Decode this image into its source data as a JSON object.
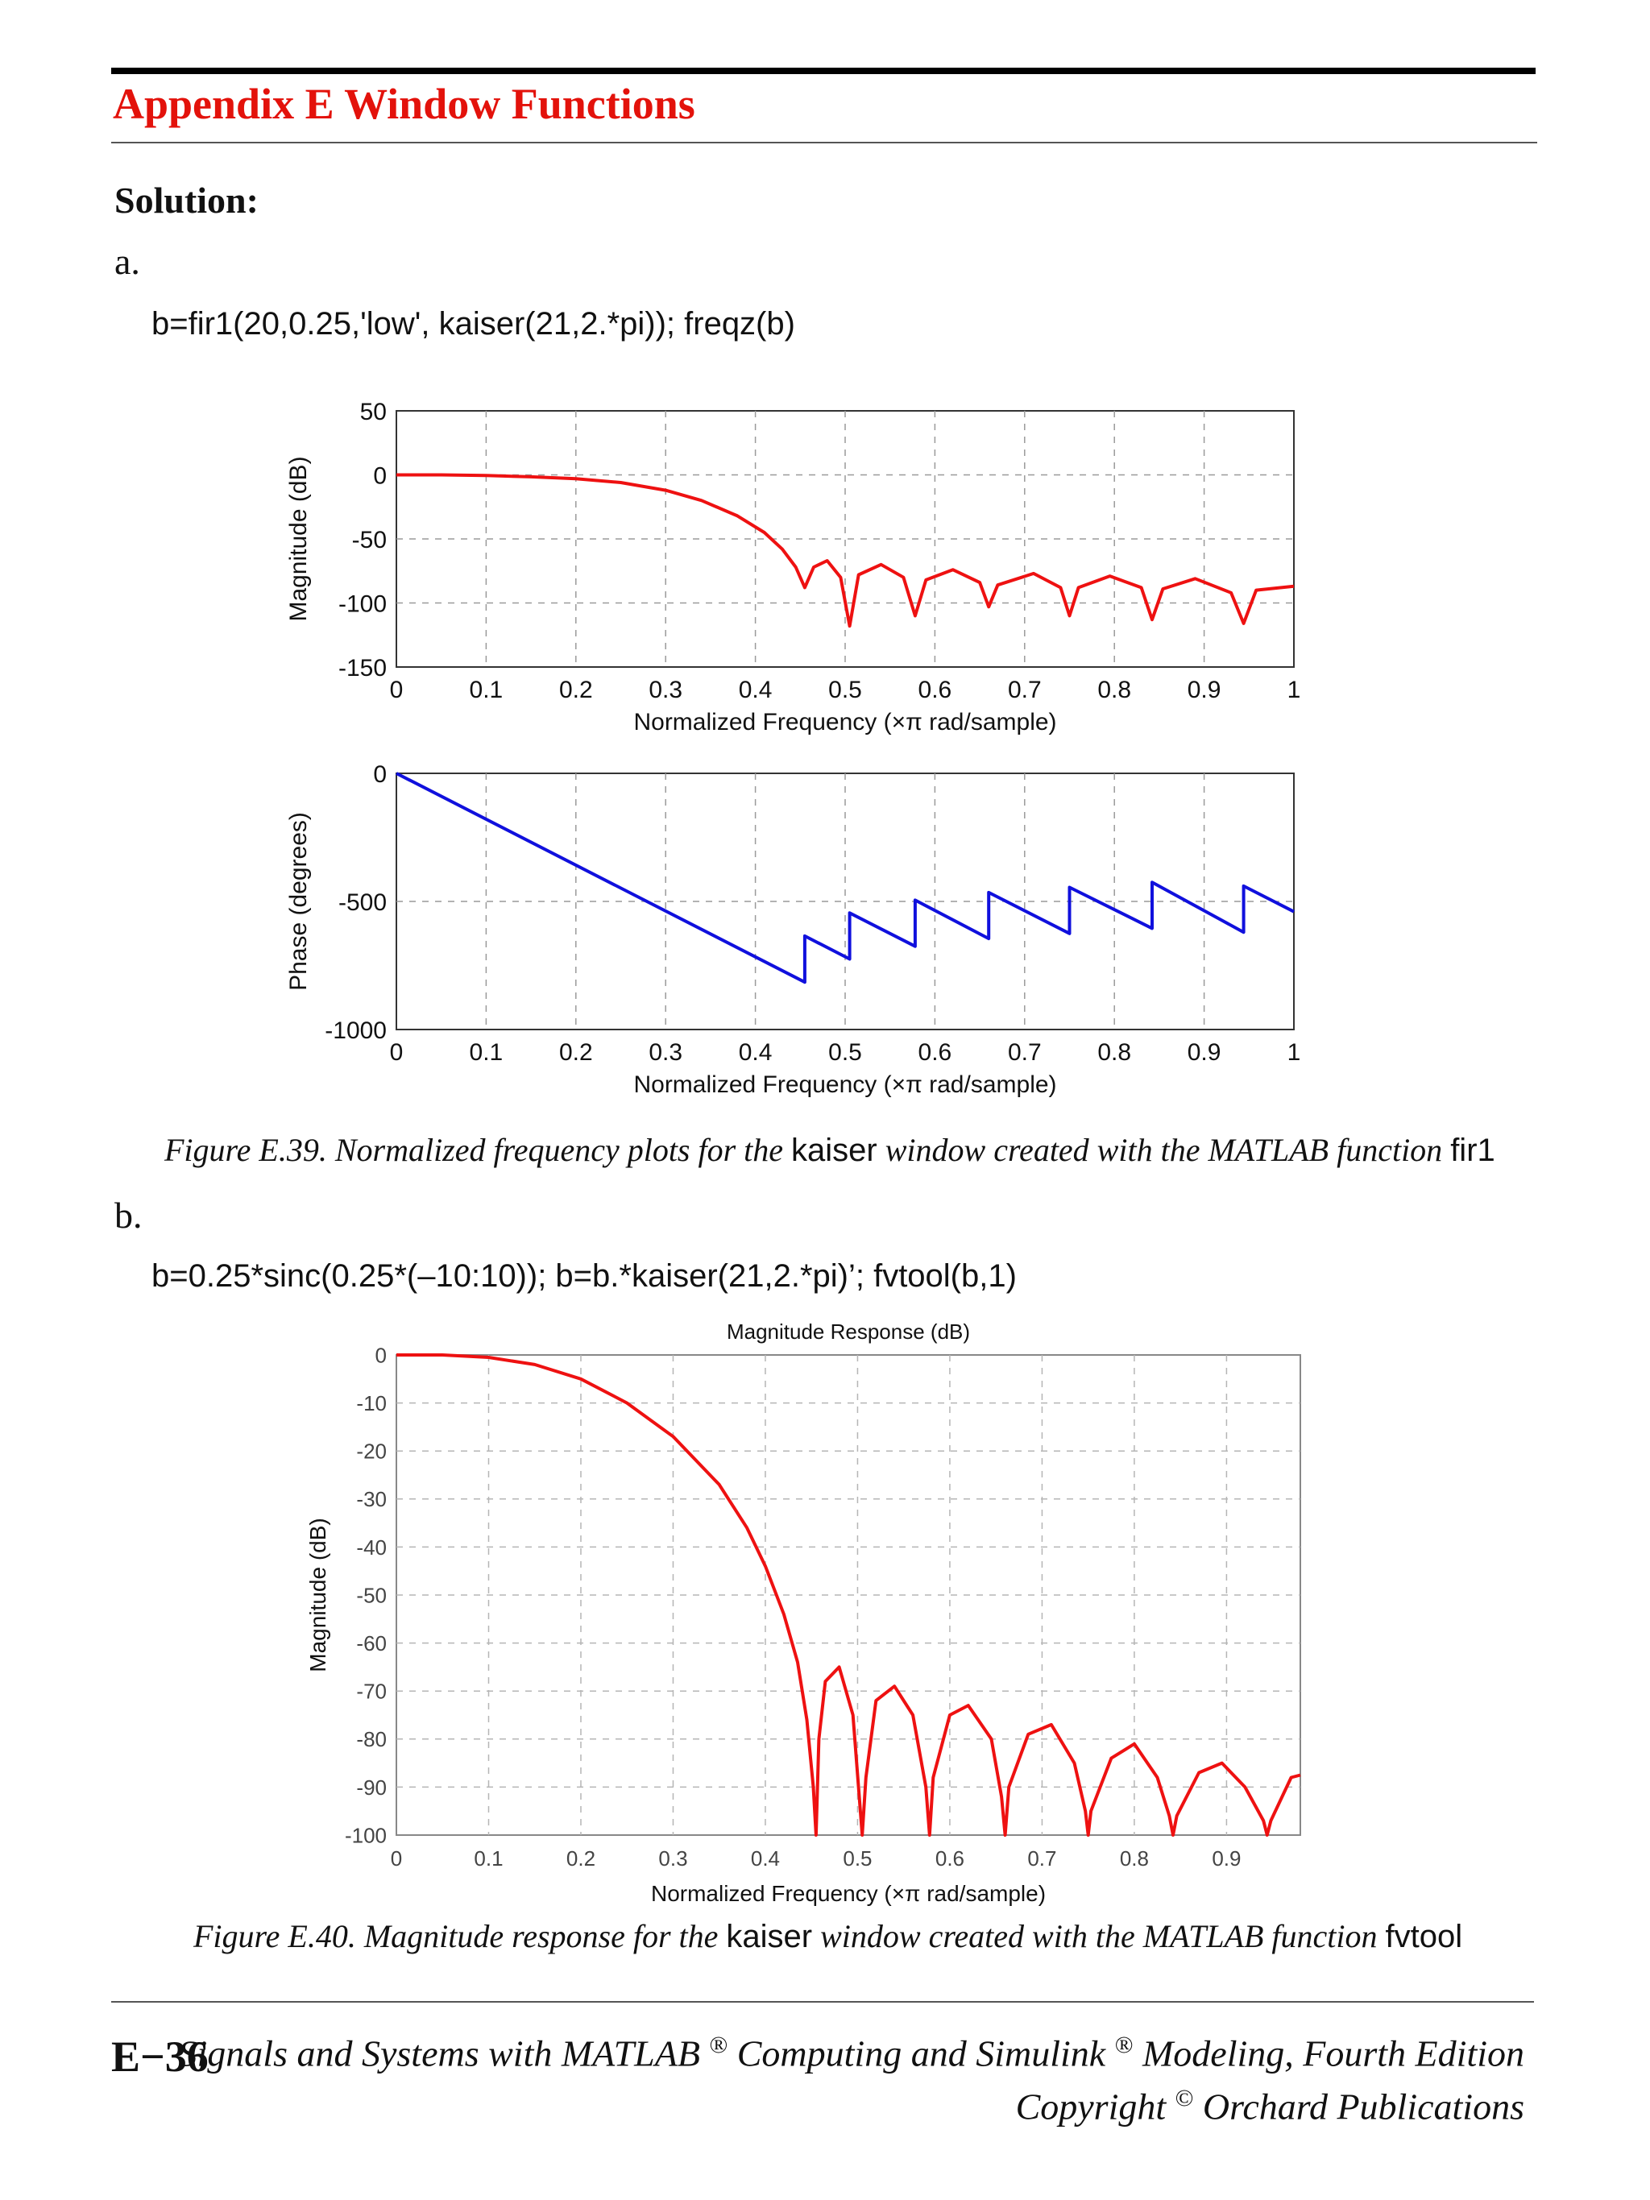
{
  "header": {
    "chapter_title": "Appendix E  Window Functions"
  },
  "section": {
    "heading": "Solution:"
  },
  "part_a": {
    "label": "a.",
    "code": "b=fir1(20,0.25,'low', kaiser(21,2.*pi)); freqz(b)",
    "caption": {
      "prefix": "Figure E.39.  Normalized frequency plots for the ",
      "word1": "kaiser",
      "middle": " window created with the MATLAB function ",
      "word2": "fir1"
    }
  },
  "part_b": {
    "label": "b.",
    "code": "b=0.25*sinc(0.25*(–10:10)); b=b.*kaiser(21,2.*pi)’; fvtool(b,1)",
    "caption": {
      "prefix": "Figure E.40.  Magnitude response for the ",
      "word1": "kaiser",
      "middle": " window created with the MATLAB function ",
      "word2": "fvtool"
    }
  },
  "footer": {
    "page_number": "E−36",
    "book_title": "Signals and Systems with MATLAB",
    "book_title_mid": " Computing and Simulink",
    "book_title_end": " Modeling, Fourth Edition",
    "registered": "®",
    "copyright_text": "Copyright",
    "copyright_symbol": "©",
    "publisher": "  Orchard Publications"
  },
  "colors": {
    "accent": "#e3120b",
    "magnitude_line": "#ee1111",
    "phase_line": "#1010dd"
  },
  "chart_data": [
    {
      "type": "line",
      "title": "",
      "xlabel": "Normalized Frequency  (×π rad/sample)",
      "ylabel": "Magnitude (dB)",
      "xlim": [
        0,
        1
      ],
      "ylim": [
        -150,
        50
      ],
      "xticks": [
        "0",
        "0.1",
        "0.2",
        "0.3",
        "0.4",
        "0.5",
        "0.6",
        "0.7",
        "0.8",
        "0.9",
        "1"
      ],
      "yticks": [
        "50",
        "0",
        "-50",
        "-100",
        "-150"
      ],
      "grid": true,
      "series": [
        {
          "x": [
            0,
            0.05,
            0.1,
            0.15,
            0.2,
            0.25,
            0.3,
            0.34,
            0.38,
            0.41,
            0.43,
            0.445,
            0.455,
            0.465,
            0.48,
            0.495,
            0.505,
            0.515,
            0.54,
            0.565,
            0.578,
            0.59,
            0.62,
            0.65,
            0.66,
            0.67,
            0.71,
            0.74,
            0.75,
            0.76,
            0.795,
            0.83,
            0.842,
            0.854,
            0.89,
            0.93,
            0.944,
            0.958,
            1.0
          ],
          "y": [
            0,
            0,
            -0.5,
            -1.5,
            -3,
            -6,
            -12,
            -20,
            -32,
            -45,
            -58,
            -72,
            -88,
            -72,
            -67,
            -80,
            -118,
            -78,
            -70,
            -80,
            -110,
            -82,
            -74,
            -84,
            -103,
            -86,
            -77,
            -88,
            -110,
            -88,
            -79,
            -88,
            -113,
            -89,
            -81,
            -92,
            -116,
            -90,
            -87
          ]
        }
      ]
    },
    {
      "type": "line",
      "title": "",
      "xlabel": "Normalized Frequency  (×π rad/sample)",
      "ylabel": "Phase (degrees)",
      "xlim": [
        0,
        1
      ],
      "ylim": [
        -1000,
        0
      ],
      "xticks": [
        "0",
        "0.1",
        "0.2",
        "0.3",
        "0.4",
        "0.5",
        "0.6",
        "0.7",
        "0.8",
        "0.9",
        "1"
      ],
      "yticks": [
        "0",
        "-500",
        "-1000"
      ],
      "grid": true,
      "series": [
        {
          "x": [
            0,
            0.455,
            0.455,
            0.505,
            0.505,
            0.578,
            0.578,
            0.66,
            0.66,
            0.75,
            0.75,
            0.842,
            0.842,
            0.944,
            0.944,
            1.0
          ],
          "y": [
            0,
            -815,
            -635,
            -725,
            -545,
            -675,
            -495,
            -645,
            -465,
            -625,
            -445,
            -605,
            -425,
            -620,
            -440,
            -540
          ]
        }
      ]
    },
    {
      "type": "line",
      "title": "Magnitude Response (dB)",
      "xlabel": "Normalized Frequency (×π rad/sample)",
      "ylabel": "Magnitude (dB)",
      "xlim": [
        0,
        0.98
      ],
      "ylim": [
        -100,
        0
      ],
      "xticks": [
        "0",
        "0.1",
        "0.2",
        "0.3",
        "0.4",
        "0.5",
        "0.6",
        "0.7",
        "0.8",
        "0.9"
      ],
      "yticks": [
        "0",
        "-10",
        "-20",
        "-30",
        "-40",
        "-50",
        "-60",
        "-70",
        "-80",
        "-90",
        "-100"
      ],
      "grid": true,
      "series": [
        {
          "x": [
            0,
            0.05,
            0.1,
            0.15,
            0.2,
            0.25,
            0.3,
            0.35,
            0.38,
            0.4,
            0.42,
            0.435,
            0.445,
            0.452,
            0.455,
            0.458,
            0.465,
            0.48,
            0.495,
            0.501,
            0.505,
            0.509,
            0.52,
            0.54,
            0.56,
            0.574,
            0.578,
            0.582,
            0.6,
            0.62,
            0.645,
            0.656,
            0.66,
            0.664,
            0.685,
            0.71,
            0.735,
            0.747,
            0.75,
            0.753,
            0.775,
            0.8,
            0.825,
            0.838,
            0.842,
            0.846,
            0.87,
            0.895,
            0.92,
            0.94,
            0.944,
            0.948,
            0.97,
            0.98
          ],
          "y": [
            0,
            0,
            -0.5,
            -2,
            -5,
            -10,
            -17,
            -27,
            -36,
            -44,
            -54,
            -64,
            -76,
            -90,
            -100,
            -80,
            -68,
            -65,
            -75,
            -90,
            -100,
            -88,
            -72,
            -69,
            -75,
            -90,
            -100,
            -88,
            -75,
            -73,
            -80,
            -92,
            -100,
            -90,
            -79,
            -77,
            -85,
            -95,
            -100,
            -95,
            -84,
            -81,
            -88,
            -96,
            -100,
            -96,
            -87,
            -85,
            -90,
            -97,
            -100,
            -97,
            -88,
            -87.5
          ]
        }
      ]
    }
  ]
}
